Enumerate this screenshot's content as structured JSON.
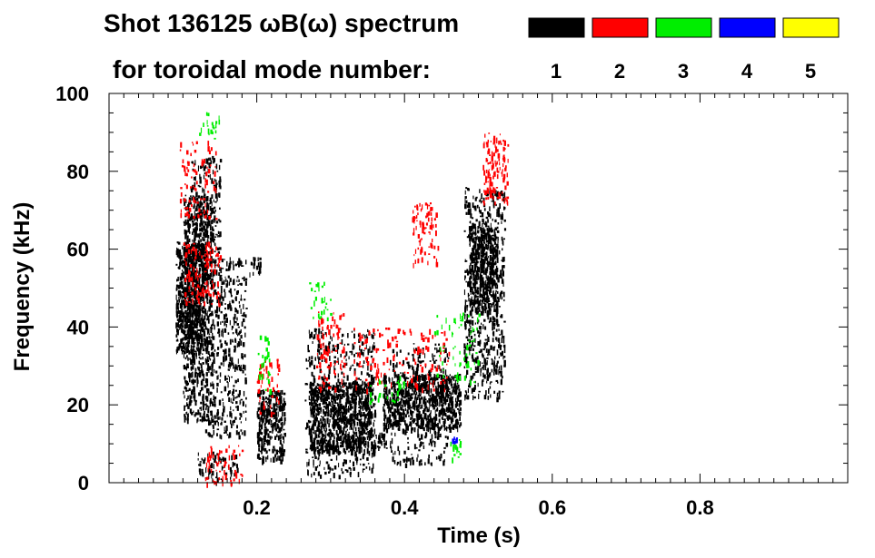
{
  "chart_data": {
    "type": "heatmap",
    "title_line1": "Shot 136125 ωB(ω) spectrum",
    "title_line2": "for toroidal mode number:",
    "xlabel": "Time (s)",
    "ylabel": "Frequency (kHz)",
    "xlim": [
      0.0,
      1.0
    ],
    "ylim": [
      0,
      100
    ],
    "x_ticks": [
      "0.2",
      "0.4",
      "0.6",
      "0.8"
    ],
    "y_ticks": [
      "0",
      "20",
      "40",
      "60",
      "80",
      "100"
    ],
    "legend": [
      {
        "mode": "1",
        "color": "#000000"
      },
      {
        "mode": "2",
        "color": "#ff0000"
      },
      {
        "mode": "3",
        "color": "#00ee00"
      },
      {
        "mode": "4",
        "color": "#0000ff"
      },
      {
        "mode": "5",
        "color": "#ffff00"
      }
    ],
    "regions": [
      {
        "mode": 1,
        "t0": 0.09,
        "t1": 0.128,
        "f0": 34,
        "f1": 62,
        "density": 0.95
      },
      {
        "mode": 1,
        "t0": 0.1,
        "t1": 0.14,
        "f0": 16,
        "f1": 74,
        "density": 0.55
      },
      {
        "mode": 1,
        "t0": 0.11,
        "t1": 0.15,
        "f0": 56,
        "f1": 84,
        "density": 0.3
      },
      {
        "mode": 1,
        "t0": 0.13,
        "t1": 0.185,
        "f0": 12,
        "f1": 58,
        "density": 0.3
      },
      {
        "mode": 1,
        "t0": 0.12,
        "t1": 0.175,
        "f0": 0,
        "f1": 8,
        "density": 0.25
      },
      {
        "mode": 1,
        "t0": 0.19,
        "t1": 0.205,
        "f0": 54,
        "f1": 58,
        "density": 0.65
      },
      {
        "mode": 1,
        "t0": 0.2,
        "t1": 0.238,
        "f0": 6,
        "f1": 24,
        "density": 0.75
      },
      {
        "mode": 1,
        "t0": 0.27,
        "t1": 0.355,
        "f0": 8,
        "f1": 26,
        "density": 0.9
      },
      {
        "mode": 1,
        "t0": 0.265,
        "t1": 0.36,
        "f0": 2,
        "f1": 40,
        "density": 0.25
      },
      {
        "mode": 1,
        "t0": 0.355,
        "t1": 0.375,
        "f0": 9,
        "f1": 13,
        "density": 0.7
      },
      {
        "mode": 1,
        "t0": 0.37,
        "t1": 0.475,
        "f0": 14,
        "f1": 28,
        "density": 0.85
      },
      {
        "mode": 1,
        "t0": 0.38,
        "t1": 0.46,
        "f0": 5,
        "f1": 36,
        "density": 0.2
      },
      {
        "mode": 1,
        "t0": 0.487,
        "t1": 0.525,
        "f0": 44,
        "f1": 66,
        "density": 0.9
      },
      {
        "mode": 1,
        "t0": 0.48,
        "t1": 0.535,
        "f0": 22,
        "f1": 76,
        "density": 0.35
      },
      {
        "mode": 2,
        "t0": 0.1,
        "t1": 0.15,
        "f0": 46,
        "f1": 62,
        "density": 0.25
      },
      {
        "mode": 2,
        "t0": 0.095,
        "t1": 0.145,
        "f0": 68,
        "f1": 88,
        "density": 0.15
      },
      {
        "mode": 2,
        "t0": 0.13,
        "t1": 0.18,
        "f0": 0,
        "f1": 10,
        "density": 0.2
      },
      {
        "mode": 2,
        "t0": 0.2,
        "t1": 0.23,
        "f0": 18,
        "f1": 32,
        "density": 0.2
      },
      {
        "mode": 2,
        "t0": 0.28,
        "t1": 0.32,
        "f0": 24,
        "f1": 44,
        "density": 0.2
      },
      {
        "mode": 2,
        "t0": 0.33,
        "t1": 0.46,
        "f0": 24,
        "f1": 40,
        "density": 0.12
      },
      {
        "mode": 2,
        "t0": 0.41,
        "t1": 0.445,
        "f0": 56,
        "f1": 72,
        "density": 0.25
      },
      {
        "mode": 2,
        "t0": 0.505,
        "t1": 0.54,
        "f0": 72,
        "f1": 90,
        "density": 0.35
      },
      {
        "mode": 3,
        "t0": 0.12,
        "t1": 0.15,
        "f0": 88,
        "f1": 96,
        "density": 0.15
      },
      {
        "mode": 3,
        "t0": 0.2,
        "t1": 0.22,
        "f0": 24,
        "f1": 38,
        "density": 0.15
      },
      {
        "mode": 3,
        "t0": 0.27,
        "t1": 0.3,
        "f0": 42,
        "f1": 52,
        "density": 0.15
      },
      {
        "mode": 3,
        "t0": 0.35,
        "t1": 0.4,
        "f0": 20,
        "f1": 28,
        "density": 0.12
      },
      {
        "mode": 3,
        "t0": 0.44,
        "t1": 0.5,
        "f0": 26,
        "f1": 44,
        "density": 0.1
      },
      {
        "mode": 3,
        "t0": 0.46,
        "t1": 0.475,
        "f0": 6,
        "f1": 12,
        "density": 0.3
      },
      {
        "mode": 4,
        "t0": 0.463,
        "t1": 0.47,
        "f0": 10,
        "f1": 12,
        "density": 0.6
      }
    ]
  }
}
